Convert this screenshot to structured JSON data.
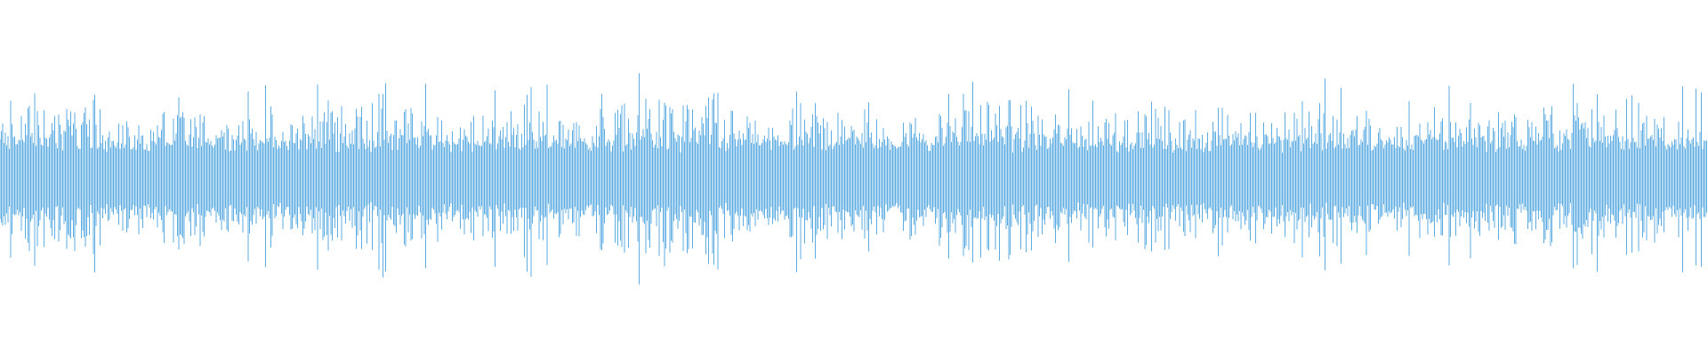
{
  "waveform": {
    "color": "#5DADE2",
    "background": "#FFFFFF",
    "style": "mirrored-amplitude-bars"
  }
}
